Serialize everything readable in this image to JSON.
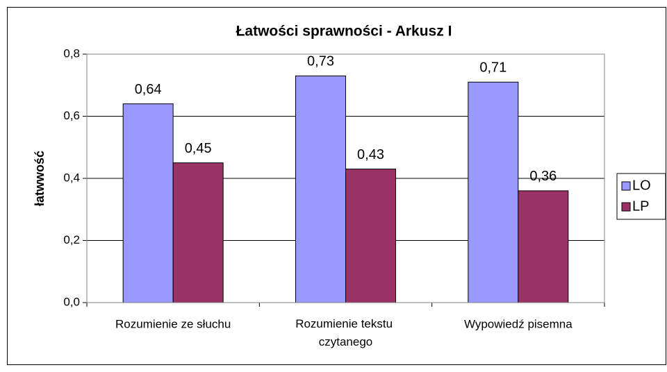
{
  "chart_data": {
    "type": "bar",
    "title": "Łatwości sprawności - Arkusz I",
    "y_label": "łatwwość",
    "categories": [
      "Rozumienie ze słuchu",
      "Rozumienie tekstu czytanego",
      "Wypowiedź pisemna"
    ],
    "series": [
      {
        "name": "LO",
        "color": "#9999ff",
        "values": [
          0.64,
          0.73,
          0.71
        ],
        "value_labels": [
          "0,64",
          "0,73",
          "0,71"
        ]
      },
      {
        "name": "LP",
        "color": "#993366",
        "values": [
          0.45,
          0.43,
          0.36
        ],
        "value_labels": [
          "0,45",
          "0,43",
          "0,36"
        ]
      }
    ],
    "ylim": [
      0,
      0.8
    ],
    "yticks": [
      {
        "value": 0,
        "label": "0,0"
      },
      {
        "value": 0.2,
        "label": "0,2"
      },
      {
        "value": 0.4,
        "label": "0,4"
      },
      {
        "value": 0.6,
        "label": "0,6"
      },
      {
        "value": 0.8,
        "label": "0,8"
      }
    ],
    "grid": true,
    "legend": "right"
  }
}
